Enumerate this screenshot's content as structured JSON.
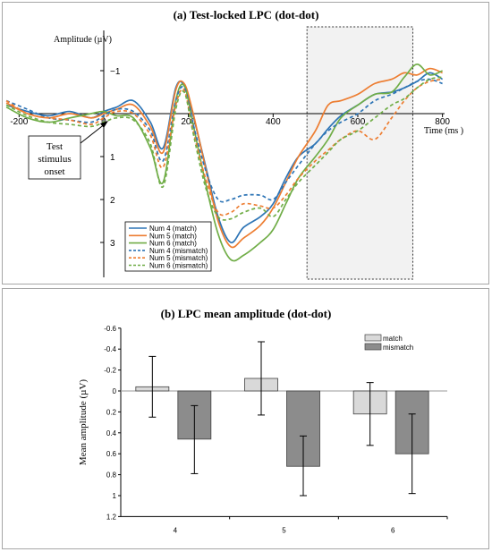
{
  "chart_data": [
    {
      "type": "line",
      "title": "(a)  Test-locked LPC (dot-dot)",
      "ylabel": "Amplitude (µV)",
      "xlabel": "Time (ms )",
      "xlim": [
        -230,
        830
      ],
      "ylim": [
        -1.8,
        3.9
      ],
      "y_inverted": true,
      "x_ticks": [
        -200,
        0,
        200,
        400,
        600,
        800
      ],
      "x_tick_labels": [
        "-200",
        "0",
        "200",
        "400",
        "600",
        "800"
      ],
      "y_ticks": [
        -1,
        1,
        2,
        3
      ],
      "y_tick_labels": [
        "−1",
        "1",
        "2",
        "3"
      ],
      "window": [
        480,
        730
      ],
      "annotation": [
        "Test",
        "stimulus",
        "onset"
      ],
      "legend_position": "bottom-left",
      "series": [
        {
          "name": "Num 4 (match)",
          "color": "#2e75b6",
          "dash": false,
          "x": [
            -230,
            -180,
            -130,
            -80,
            -30,
            0,
            30,
            70,
            110,
            140,
            170,
            190,
            210,
            240,
            270,
            300,
            330,
            370,
            400,
            430,
            460,
            500,
            530,
            560,
            600,
            640,
            680,
            710,
            740,
            770,
            800
          ],
          "y": [
            -0.2,
            -0.05,
            0.05,
            -0.05,
            0.1,
            -0.05,
            -0.15,
            -0.3,
            0.2,
            0.8,
            -0.6,
            -0.65,
            0.0,
            1.2,
            2.4,
            3.0,
            2.65,
            2.4,
            2.1,
            1.5,
            1.0,
            0.7,
            0.35,
            0.05,
            -0.2,
            -0.45,
            -0.5,
            -0.6,
            -0.75,
            -0.95,
            -0.8
          ]
        },
        {
          "name": "Num 5 (match)",
          "color": "#ed7d31",
          "dash": false,
          "x": [
            -230,
            -180,
            -130,
            -80,
            -30,
            0,
            30,
            70,
            110,
            140,
            170,
            190,
            210,
            240,
            270,
            300,
            330,
            370,
            400,
            430,
            460,
            500,
            530,
            560,
            600,
            640,
            680,
            710,
            740,
            770,
            800
          ],
          "y": [
            -0.25,
            0.0,
            0.1,
            0.0,
            0.1,
            0.0,
            -0.1,
            -0.2,
            0.3,
            0.9,
            -0.55,
            -0.7,
            -0.05,
            1.25,
            2.5,
            3.1,
            2.9,
            2.6,
            2.2,
            1.6,
            1.0,
            0.4,
            -0.2,
            -0.3,
            -0.45,
            -0.7,
            -0.8,
            -0.95,
            -0.9,
            -1.05,
            -0.95
          ]
        },
        {
          "name": "Num 6 (match)",
          "color": "#70ad47",
          "dash": false,
          "x": [
            -230,
            -180,
            -130,
            -80,
            -30,
            0,
            30,
            70,
            110,
            140,
            170,
            190,
            210,
            240,
            270,
            300,
            330,
            370,
            400,
            430,
            460,
            500,
            530,
            560,
            600,
            640,
            680,
            710,
            740,
            770,
            800
          ],
          "y": [
            -0.15,
            0.1,
            0.2,
            0.1,
            0.0,
            -0.05,
            0.05,
            0.1,
            0.8,
            1.6,
            -0.3,
            -0.65,
            0.2,
            1.6,
            2.8,
            3.4,
            3.3,
            3.0,
            2.7,
            2.1,
            1.5,
            1.0,
            0.6,
            0.1,
            -0.2,
            -0.45,
            -0.5,
            -0.85,
            -1.15,
            -0.9,
            -1.0
          ]
        },
        {
          "name": "Num 4 (mismatch)",
          "color": "#2e75b6",
          "dash": true,
          "x": [
            -230,
            -180,
            -130,
            -80,
            -30,
            0,
            30,
            70,
            110,
            140,
            170,
            190,
            210,
            240,
            270,
            300,
            330,
            370,
            400,
            430,
            460,
            500,
            530,
            560,
            600,
            640,
            680,
            710,
            740,
            770,
            800
          ],
          "y": [
            -0.3,
            -0.1,
            0.1,
            0.15,
            0.2,
            0.05,
            -0.1,
            -0.05,
            0.4,
            1.1,
            -0.3,
            -0.6,
            0.2,
            1.3,
            2.0,
            2.0,
            1.9,
            1.9,
            2.0,
            1.6,
            1.2,
            0.7,
            0.4,
            0.2,
            0.0,
            -0.3,
            -0.45,
            -0.6,
            -0.75,
            -0.8,
            -0.7
          ]
        },
        {
          "name": "Num 5 (mismatch)",
          "color": "#ed7d31",
          "dash": true,
          "x": [
            -230,
            -180,
            -130,
            -80,
            -30,
            0,
            30,
            70,
            110,
            140,
            170,
            190,
            210,
            240,
            270,
            300,
            330,
            370,
            400,
            430,
            460,
            500,
            530,
            560,
            600,
            640,
            680,
            710,
            740,
            770,
            800
          ],
          "y": [
            -0.3,
            0.0,
            0.1,
            0.15,
            0.25,
            0.1,
            -0.05,
            0.0,
            0.5,
            1.25,
            -0.2,
            -0.55,
            0.35,
            1.5,
            2.3,
            2.3,
            2.1,
            2.15,
            2.2,
            1.9,
            1.5,
            1.1,
            0.85,
            0.6,
            0.4,
            0.6,
            0.1,
            -0.3,
            -0.6,
            -0.75,
            -0.8
          ]
        },
        {
          "name": "Num 6 (mismatch)",
          "color": "#70ad47",
          "dash": true,
          "x": [
            -230,
            -180,
            -130,
            -80,
            -30,
            0,
            30,
            70,
            110,
            140,
            170,
            190,
            210,
            240,
            270,
            300,
            330,
            370,
            400,
            430,
            460,
            500,
            530,
            560,
            600,
            640,
            680,
            710,
            740,
            770,
            800
          ],
          "y": [
            -0.2,
            0.05,
            0.2,
            0.25,
            0.3,
            0.2,
            0.1,
            0.15,
            0.7,
            1.7,
            -0.1,
            -0.5,
            0.4,
            1.7,
            2.4,
            2.45,
            2.3,
            2.2,
            2.4,
            2.0,
            1.6,
            1.2,
            0.9,
            0.6,
            0.4,
            0.1,
            -0.2,
            -0.35,
            -0.6,
            -0.8,
            -0.85
          ]
        }
      ]
    },
    {
      "type": "bar",
      "title": "(b)  LPC mean amplitude (dot-dot)",
      "ylabel": "Mean amplitude (µV)",
      "categories": [
        "4",
        "5",
        "6"
      ],
      "ylim": [
        -0.6,
        1.2
      ],
      "y_inverted": true,
      "y_ticks": [
        -0.6,
        -0.4,
        -0.2,
        0,
        0.2,
        0.4,
        0.6,
        0.8,
        1,
        1.2
      ],
      "y_tick_labels": [
        "-0.6",
        "-0.4",
        "-0.2",
        "0",
        "0.2",
        "0.4",
        "0.6",
        "0.8",
        "1",
        "1.2"
      ],
      "legend_position": "top-right",
      "series": [
        {
          "name": "match",
          "color": "#d9d9d9",
          "values": [
            -0.04,
            -0.12,
            0.22
          ],
          "err_low": [
            0.25,
            0.23,
            0.52
          ],
          "err_high": [
            -0.33,
            -0.47,
            -0.08
          ]
        },
        {
          "name": "mismatch",
          "color": "#8c8c8c",
          "values": [
            0.46,
            0.72,
            0.6
          ],
          "err_low": [
            0.79,
            1.0,
            0.98
          ],
          "err_high": [
            0.14,
            0.43,
            0.22
          ]
        }
      ]
    }
  ]
}
